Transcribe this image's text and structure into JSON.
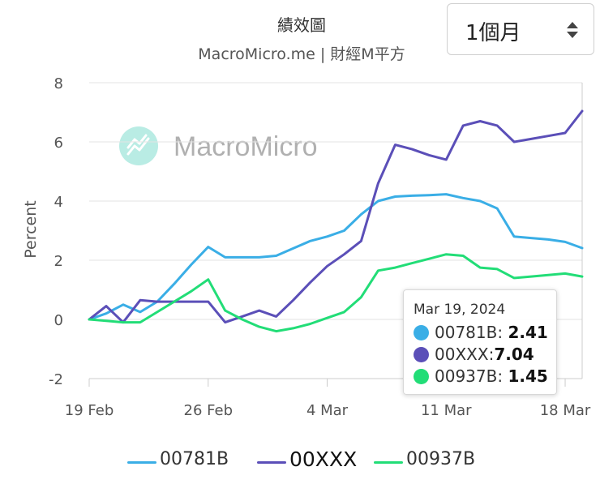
{
  "period_select": {
    "value": "1個月"
  },
  "chart_data": {
    "type": "line",
    "title": "績效圖",
    "subtitle": "MacroMicro.me | 財經M平方",
    "watermark": "MacroMicro",
    "ylabel": "Percent",
    "ylim": [
      -2,
      8
    ],
    "yticks": [
      -2,
      0,
      2,
      4,
      6,
      8
    ],
    "xticks": [
      {
        "label": "19 Feb",
        "x": 0
      },
      {
        "label": "26 Feb",
        "x": 7
      },
      {
        "label": "4 Mar",
        "x": 14
      },
      {
        "label": "11 Mar",
        "x": 21
      },
      {
        "label": "18 Mar",
        "x": 28
      }
    ],
    "xlim": [
      0,
      29
    ],
    "grid": true,
    "legend_position": "bottom",
    "series": [
      {
        "name": "00781B",
        "color": "#3aaee6",
        "x": [
          0,
          1,
          2,
          3,
          4,
          5,
          6,
          7,
          8,
          9,
          10,
          11,
          12,
          13,
          14,
          15,
          16,
          17,
          18,
          19,
          20,
          21,
          22,
          23,
          24,
          25,
          26,
          27,
          28,
          29
        ],
        "y": [
          0,
          0.2,
          0.5,
          0.25,
          0.6,
          1.2,
          1.85,
          2.45,
          2.1,
          2.1,
          2.1,
          2.15,
          2.4,
          2.65,
          2.8,
          3.0,
          3.55,
          4.0,
          4.15,
          4.18,
          4.2,
          4.23,
          4.1,
          4.0,
          3.75,
          2.8,
          2.75,
          2.7,
          2.62,
          2.41
        ]
      },
      {
        "name": "00XXX",
        "color": "#5b4fb8",
        "x": [
          0,
          1,
          2,
          3,
          4,
          5,
          6,
          7,
          8,
          9,
          10,
          11,
          12,
          13,
          14,
          15,
          16,
          17,
          18,
          19,
          20,
          21,
          22,
          23,
          24,
          25,
          26,
          27,
          28,
          29
        ],
        "y": [
          0,
          0.45,
          -0.1,
          0.65,
          0.6,
          0.6,
          0.6,
          0.6,
          -0.1,
          0.1,
          0.3,
          0.1,
          0.65,
          1.25,
          1.8,
          2.2,
          2.65,
          4.6,
          5.9,
          5.75,
          5.55,
          5.4,
          6.55,
          6.7,
          6.55,
          6.0,
          6.1,
          6.2,
          6.3,
          7.04
        ]
      },
      {
        "name": "00937B",
        "color": "#22dd77",
        "x": [
          0,
          1,
          2,
          3,
          4,
          5,
          6,
          7,
          8,
          9,
          10,
          11,
          12,
          13,
          14,
          15,
          16,
          17,
          18,
          19,
          20,
          21,
          22,
          23,
          24,
          25,
          26,
          27,
          28,
          29
        ],
        "y": [
          0,
          -0.05,
          -0.1,
          -0.1,
          0.25,
          0.6,
          0.95,
          1.35,
          0.3,
          0.0,
          -0.25,
          -0.4,
          -0.3,
          -0.15,
          0.05,
          0.25,
          0.75,
          1.65,
          1.75,
          1.9,
          2.05,
          2.2,
          2.15,
          1.75,
          1.7,
          1.4,
          1.45,
          1.5,
          1.55,
          1.45
        ]
      }
    ],
    "hover_x": 29
  },
  "tooltip": {
    "date": "Mar 19, 2024",
    "rows": [
      {
        "name": "00781B",
        "sep": ": ",
        "value": "2.41",
        "color": "#3aaee6"
      },
      {
        "name": "00XXX",
        "sep": ":",
        "value": "7.04",
        "color": "#5b4fb8"
      },
      {
        "name": "00937B",
        "sep": ": ",
        "value": "1.45",
        "color": "#22dd77"
      }
    ]
  }
}
